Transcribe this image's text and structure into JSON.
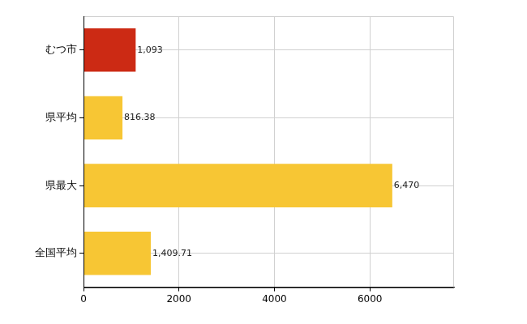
{
  "chart_data": {
    "type": "bar",
    "orientation": "horizontal",
    "categories": [
      "むつ市",
      "県平均",
      "県最大",
      "全国平均"
    ],
    "values": [
      1093,
      816.38,
      6470,
      1409.71
    ],
    "value_labels": [
      "1,093",
      "816.38",
      "6,470",
      "1,409.71"
    ],
    "data_labels": true,
    "colors": [
      "#cc2a14",
      "#f7c634",
      "#f7c634",
      "#f7c634"
    ],
    "xlim": [
      0,
      7764
    ],
    "xticks": [
      0,
      2000,
      4000,
      6000
    ],
    "grid": true
  }
}
